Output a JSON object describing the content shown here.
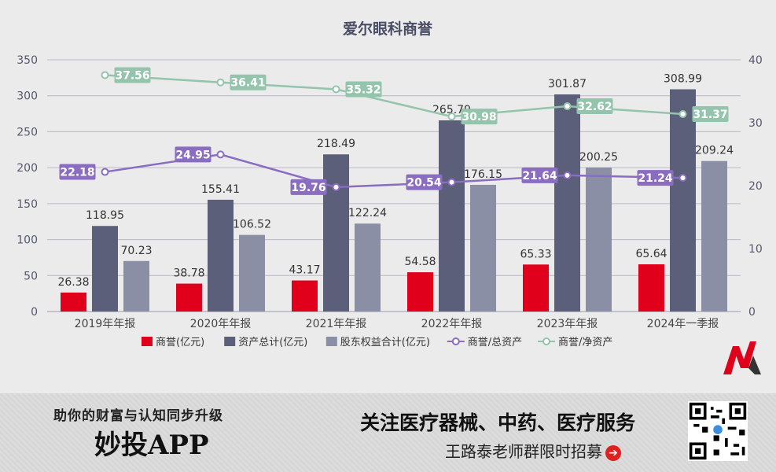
{
  "chart_data": {
    "type": "bar+line",
    "title": "爱尔眼科商誉",
    "categories": [
      "2019年年报",
      "2020年年报",
      "2021年年报",
      "2022年年报",
      "2023年年报",
      "2024年一季报"
    ],
    "bar_series": [
      {
        "name": "商誉(亿元)",
        "color": "#e0001b",
        "values": [
          26.38,
          38.78,
          43.17,
          54.58,
          65.33,
          65.64
        ]
      },
      {
        "name": "资产总计(亿元)",
        "color": "#5b5f7a",
        "values": [
          118.95,
          155.41,
          218.49,
          265.79,
          301.87,
          308.99
        ]
      },
      {
        "name": "股东权益合计(亿元)",
        "color": "#8b8fa6",
        "values": [
          70.23,
          106.52,
          122.24,
          176.15,
          200.25,
          209.24
        ]
      }
    ],
    "line_series": [
      {
        "name": "商誉/总资产",
        "color": "#8a6cc0",
        "values": [
          22.18,
          24.95,
          19.76,
          20.54,
          21.64,
          21.24
        ]
      },
      {
        "name": "商誉/净资产",
        "color": "#94c4ac",
        "values": [
          37.56,
          36.41,
          35.32,
          30.98,
          32.62,
          31.37
        ]
      }
    ],
    "y_left": {
      "min": 0,
      "max": 350,
      "ticks": [
        0,
        50,
        100,
        150,
        200,
        250,
        300,
        350
      ]
    },
    "y_right": {
      "min": 0,
      "max": 40,
      "ticks": [
        0,
        10,
        20,
        30,
        40
      ]
    }
  },
  "banner": {
    "left_top": "助你的财富与认知同步升级",
    "left_main": "妙投APP",
    "right_top": "关注医疗器械、中药、医疗服务",
    "right_sub": "王路泰老师群限时招募",
    "arrow": "➔"
  }
}
